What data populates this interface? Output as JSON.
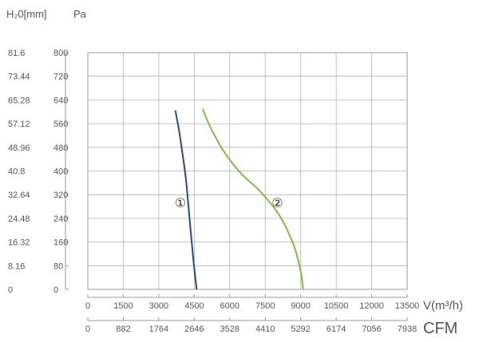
{
  "chart_data": {
    "type": "line",
    "title": "",
    "left_axis_label": "H₂0[mm]",
    "pressure_axis_label": "Pa",
    "pressure_ticks": [
      0,
      80,
      160,
      240,
      320,
      400,
      480,
      560,
      640,
      720,
      800
    ],
    "h2o_ticks": [
      "0",
      "8.16",
      "16.32",
      "24.48",
      "32.64",
      "40.8",
      "48.96",
      "57.12",
      "65.28",
      "73.44",
      "81.6"
    ],
    "ylim": [
      0,
      800
    ],
    "xlim": [
      0,
      13500
    ],
    "x_axis_label": "V(m³/h)",
    "x_ticks_m3h": [
      0,
      1500,
      3000,
      4500,
      6000,
      7500,
      9000,
      10500,
      12000,
      13500
    ],
    "cfm_axis_label": "CFM",
    "cfm_ticks": [
      "0",
      "882",
      "1764",
      "2646",
      "3528",
      "4410",
      "5292",
      "6174",
      "7056",
      "7938"
    ],
    "grid": true,
    "series": [
      {
        "name": "①",
        "color": "#1c4c96",
        "x": [
          3700,
          3850,
          4000,
          4150,
          4300,
          4450,
          4600
        ],
        "y": [
          605,
          540,
          460,
          370,
          240,
          110,
          0
        ]
      },
      {
        "name": "②",
        "color": "#7dbf3c",
        "x": [
          4850,
          5200,
          5800,
          6500,
          7300,
          8100,
          8700,
          9000,
          9100
        ],
        "y": [
          610,
          545,
          460,
          390,
          330,
          250,
          150,
          60,
          0
        ]
      }
    ]
  }
}
